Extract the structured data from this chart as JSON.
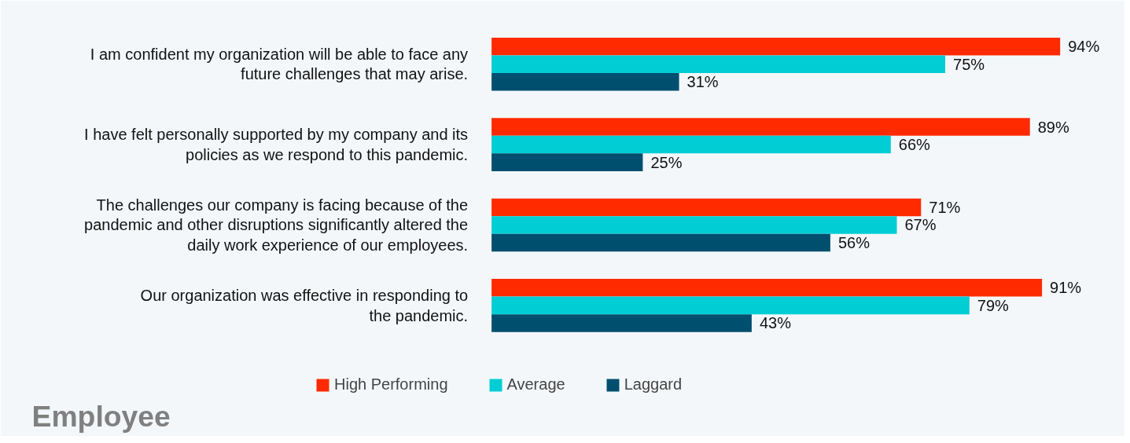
{
  "chart_data": {
    "type": "bar",
    "orientation": "horizontal",
    "title": "Employee",
    "categories": [
      "I am confident my organization will be able to face any\nfuture challenges that may arise.",
      "I have felt personally supported by my company and its\npolicies as we respond to this pandemic.",
      "The challenges our company is facing because of the\npandemic and other disruptions significantly altered the\ndaily work experience of our employees.",
      "Our organization was effective in responding to\nthe pandemic."
    ],
    "series": [
      {
        "name": "High Performing",
        "color": "#ff2a00",
        "values": [
          94,
          89,
          71,
          91
        ],
        "value_labels": [
          "94%",
          "89%",
          "71%",
          "91%"
        ]
      },
      {
        "name": "Average",
        "color": "#00ced4",
        "values": [
          75,
          66,
          67,
          79
        ],
        "value_labels": [
          "75%",
          "66%",
          "67%",
          "79%"
        ]
      },
      {
        "name": "Laggard",
        "color": "#004f6f",
        "values": [
          31,
          25,
          56,
          43
        ],
        "value_labels": [
          "31%",
          "25%",
          "56%",
          "43%"
        ]
      }
    ],
    "legend": "bottom",
    "grid": false
  }
}
